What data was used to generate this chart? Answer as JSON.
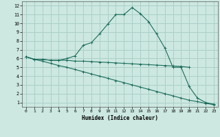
{
  "xlabel": "Humidex (Indice chaleur)",
  "background_color": "#cce8e0",
  "grid_color": "#aacfc8",
  "line_color": "#1a6b5a",
  "xlim": [
    -0.5,
    23.5
  ],
  "ylim": [
    0.5,
    12.5
  ],
  "xticks": [
    0,
    1,
    2,
    3,
    4,
    5,
    6,
    7,
    8,
    9,
    10,
    11,
    12,
    13,
    14,
    15,
    16,
    17,
    18,
    19,
    20,
    21,
    22,
    23
  ],
  "yticks": [
    1,
    2,
    3,
    4,
    5,
    6,
    7,
    8,
    9,
    10,
    11,
    12
  ],
  "line1_x": [
    0,
    1,
    2,
    3,
    4,
    5,
    6,
    7,
    8,
    9,
    10,
    11,
    12,
    13,
    14,
    15,
    16,
    17,
    18,
    19,
    20,
    21,
    22,
    23
  ],
  "line1_y": [
    6.2,
    5.9,
    5.9,
    5.8,
    5.8,
    6.0,
    6.3,
    7.5,
    7.8,
    8.8,
    9.9,
    11.0,
    11.0,
    11.8,
    11.1,
    10.2,
    8.8,
    7.2,
    5.0,
    5.0,
    2.8,
    1.5,
    1.0,
    0.8
  ],
  "line2_x": [
    0,
    1,
    2,
    3,
    4,
    5,
    6,
    7,
    8,
    9,
    10,
    11,
    12,
    13,
    14,
    15,
    16,
    17,
    18,
    19,
    20
  ],
  "line2_y": [
    6.2,
    5.9,
    5.9,
    5.8,
    5.8,
    5.8,
    5.7,
    5.7,
    5.65,
    5.6,
    5.55,
    5.5,
    5.45,
    5.4,
    5.35,
    5.3,
    5.25,
    5.2,
    5.15,
    5.1,
    5.0
  ],
  "line3_x": [
    0,
    1,
    2,
    3,
    4,
    5,
    6,
    7,
    8,
    9,
    10,
    11,
    12,
    13,
    14,
    15,
    16,
    17,
    18,
    19,
    20,
    21,
    22,
    23
  ],
  "line3_y": [
    6.2,
    5.9,
    5.7,
    5.45,
    5.2,
    5.0,
    4.75,
    4.5,
    4.25,
    4.0,
    3.75,
    3.5,
    3.25,
    3.0,
    2.75,
    2.5,
    2.25,
    2.0,
    1.75,
    1.5,
    1.25,
    1.1,
    0.9,
    0.75
  ]
}
